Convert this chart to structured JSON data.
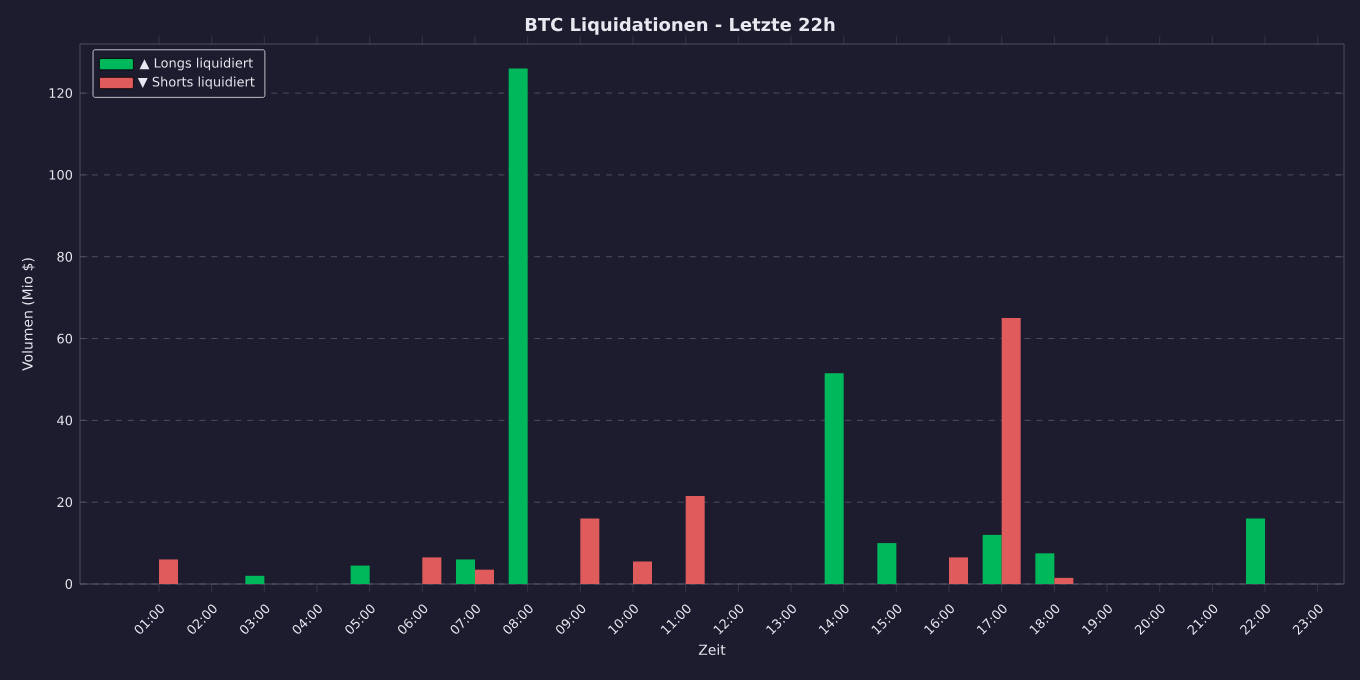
{
  "chart_data": {
    "type": "bar",
    "title": "BTC Liquidationen - Letzte 22h",
    "xlabel": "Zeit",
    "ylabel": "Volumen (Mio $)",
    "categories": [
      "01:00",
      "02:00",
      "03:00",
      "04:00",
      "05:00",
      "06:00",
      "07:00",
      "08:00",
      "09:00",
      "10:00",
      "11:00",
      "12:00",
      "13:00",
      "14:00",
      "15:00",
      "16:00",
      "17:00",
      "18:00",
      "19:00",
      "20:00",
      "21:00",
      "22:00",
      "23:00"
    ],
    "series": [
      {
        "name": "▲ Longs liquidiert",
        "color": "#00b85c",
        "values": [
          0,
          0,
          2,
          0,
          4.5,
          0,
          6,
          126,
          0,
          0,
          0,
          0,
          0,
          51.5,
          10,
          0,
          12,
          7.5,
          0,
          0,
          0,
          16,
          0
        ]
      },
      {
        "name": "▼ Shorts liquidiert",
        "color": "#e05c5c",
        "values": [
          6,
          0,
          0,
          0,
          0,
          6.5,
          3.5,
          0,
          16,
          5.5,
          21.5,
          0,
          0,
          0,
          0,
          6.5,
          65,
          1.5,
          0,
          0,
          0,
          0,
          0
        ]
      }
    ],
    "ylim": [
      0,
      132
    ],
    "yticks": [
      0,
      20,
      40,
      60,
      80,
      100,
      120
    ],
    "grid": "y",
    "legend": "top left"
  }
}
